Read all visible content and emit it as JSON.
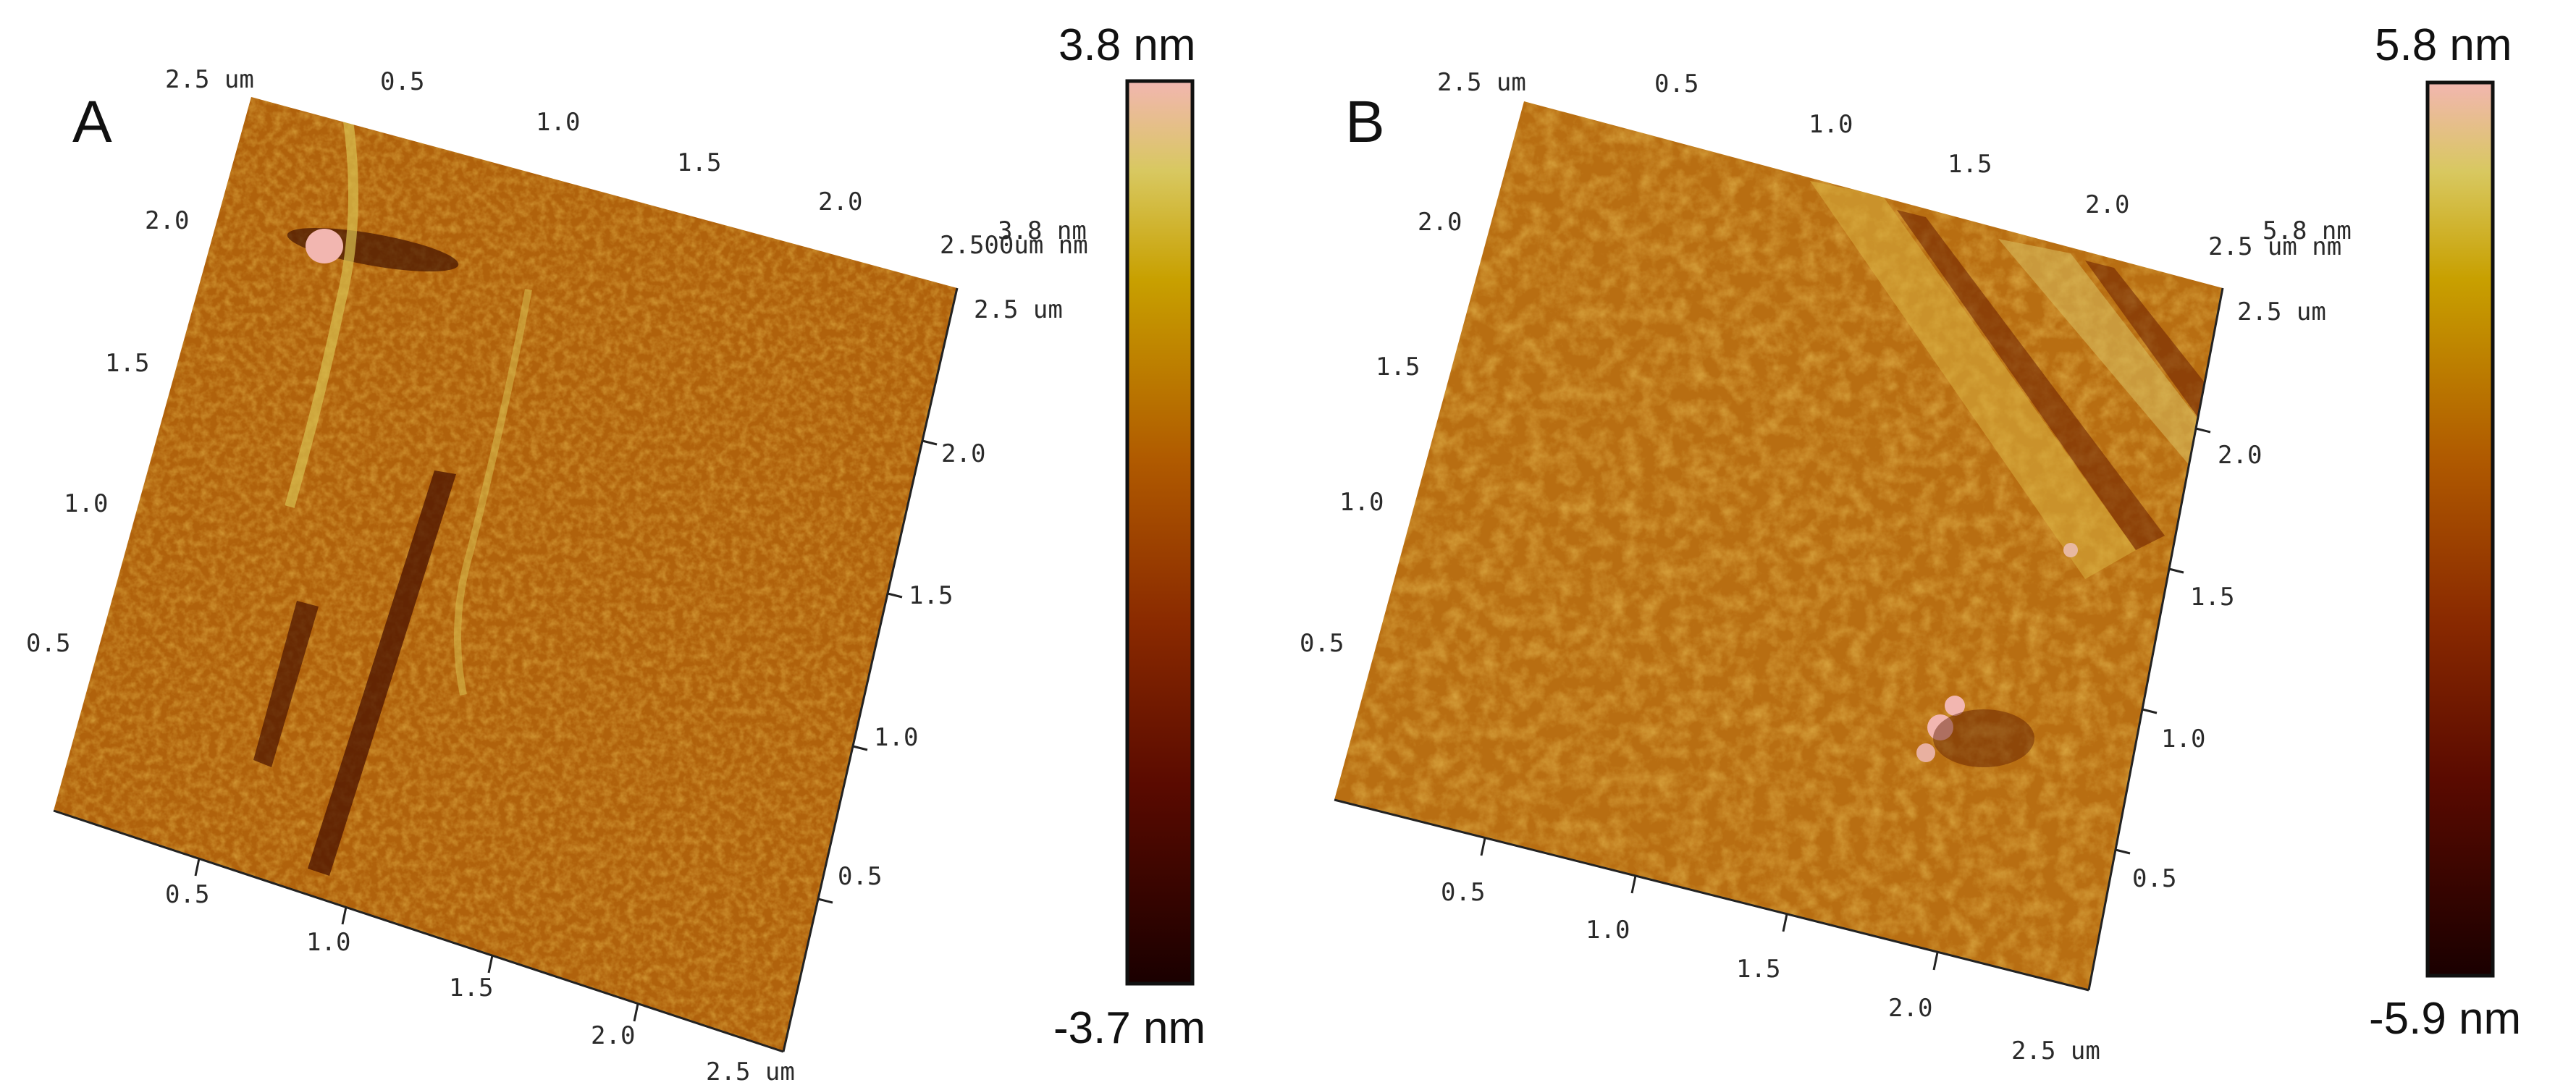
{
  "panels": [
    {
      "letter": "A",
      "scale_max": "3.8 nm",
      "scale_min": "-3.7 nm",
      "left_axis_ticks": [
        "2.5 um",
        "2.0",
        "1.5",
        "1.0",
        "0.5"
      ],
      "top_axis_ticks": [
        "0.5",
        "1.0",
        "1.5",
        "2.0"
      ],
      "top_right_overlay": "2.500um nm",
      "top_right_overlay2": "3.8 nm",
      "right_axis_ticks": [
        "2.5 um",
        "2.0",
        "1.5",
        "1.0",
        "0.5"
      ],
      "bottom_axis_ticks": [
        "0.5",
        "1.0",
        "1.5",
        "2.0",
        "2.5 um"
      ]
    },
    {
      "letter": "B",
      "scale_max": "5.8 nm",
      "scale_min": "-5.9 nm",
      "left_axis_ticks": [
        "2.5 um",
        "2.0",
        "1.5",
        "1.0",
        "0.5"
      ],
      "top_axis_ticks": [
        "0.5",
        "1.0",
        "1.5",
        "2.0"
      ],
      "top_right_overlay": "2.5 um nm",
      "top_right_overlay2": "5.8 nm",
      "right_axis_ticks": [
        "2.5 um",
        "2.0",
        "1.5",
        "1.0",
        "0.5"
      ],
      "bottom_axis_ticks": [
        "0.5",
        "1.0",
        "1.5",
        "2.0",
        "2.5 um"
      ]
    }
  ],
  "colors": {
    "colormap": [
      "#1a0000",
      "#5a0a00",
      "#8a2a00",
      "#b05a00",
      "#c8a000",
      "#d8c860",
      "#f2b6b0"
    ],
    "surface_base": "#b86a10"
  }
}
